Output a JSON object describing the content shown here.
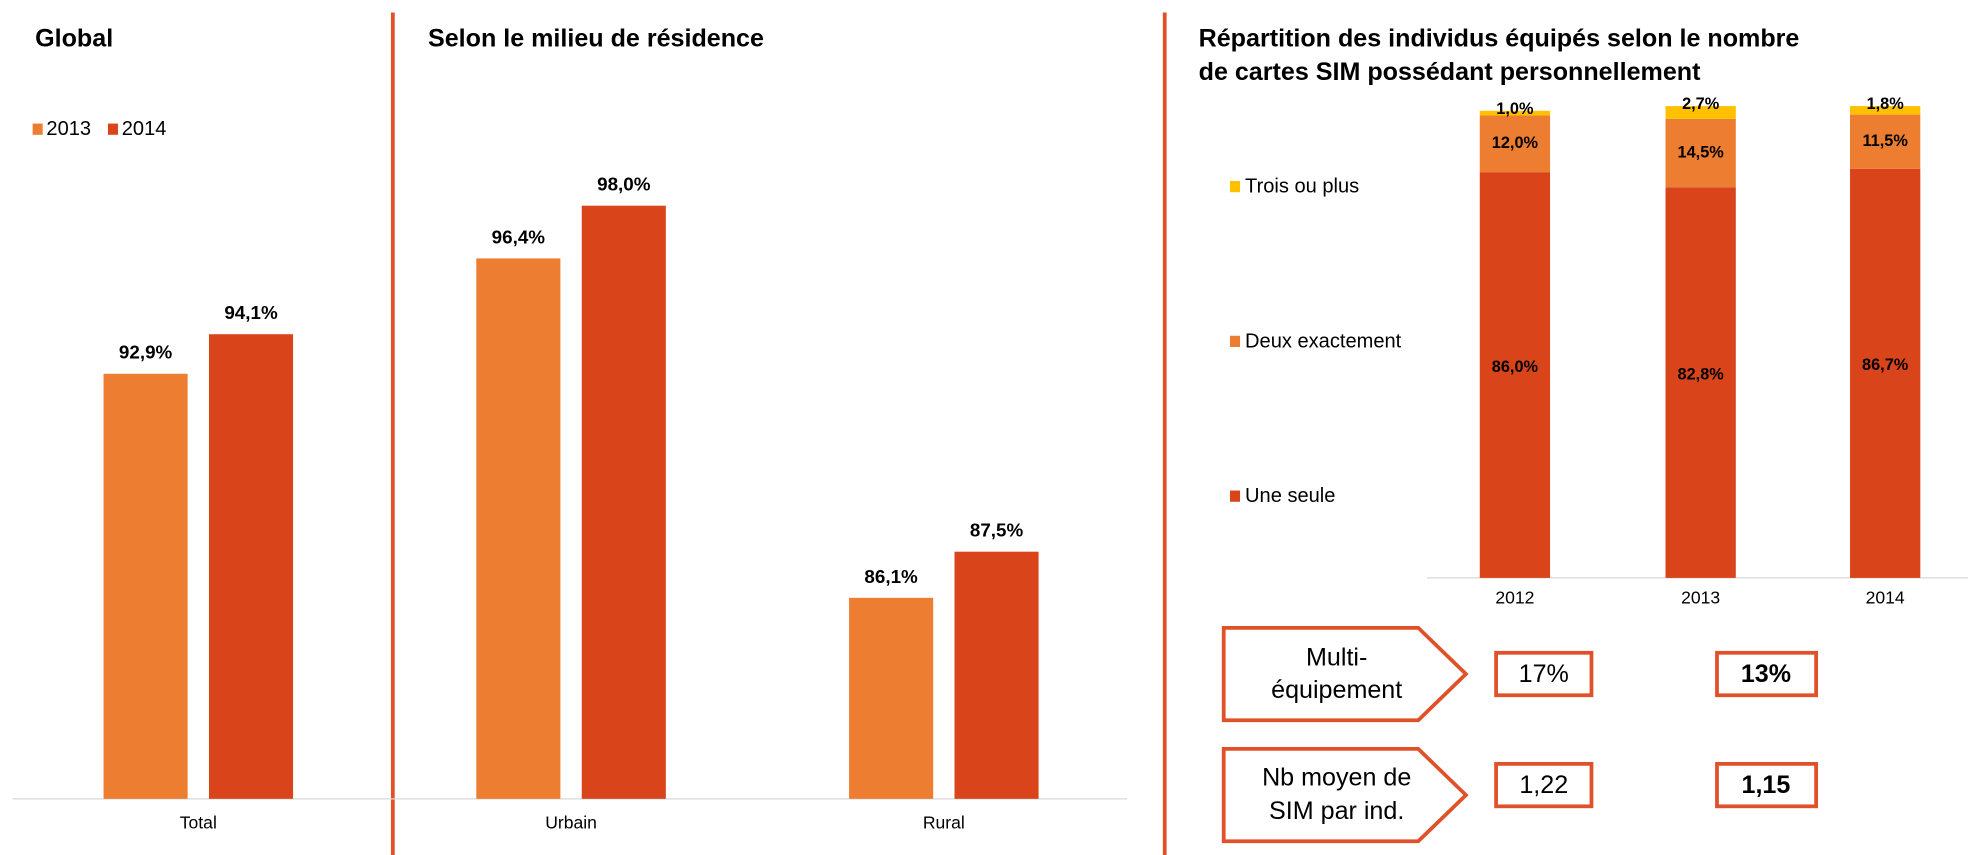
{
  "chart_data": [
    {
      "type": "bar",
      "title": "Global",
      "categories": [
        "Total"
      ],
      "series": [
        {
          "name": "2013",
          "color": "#ed7d31",
          "values": [
            92.9
          ],
          "value_labels": [
            "92,9%"
          ]
        },
        {
          "name": "2014",
          "color": "#d9441a",
          "values": [
            94.1
          ],
          "value_labels": [
            "94,1%"
          ]
        }
      ],
      "ylim": [
        80,
        100
      ],
      "legend": "top-left"
    },
    {
      "type": "bar",
      "title": "Selon le milieu de résidence",
      "categories": [
        "Urbain",
        "Rural"
      ],
      "series": [
        {
          "name": "2013",
          "color": "#ed7d31",
          "values": [
            96.4,
            86.1
          ],
          "value_labels": [
            "96,4%",
            "86,1%"
          ]
        },
        {
          "name": "2014",
          "color": "#d9441a",
          "values": [
            98.0,
            87.5
          ],
          "value_labels": [
            "98,0%",
            "87,5%"
          ]
        }
      ],
      "ylim": [
        80,
        100
      ]
    },
    {
      "type": "stacked_bar",
      "title": [
        "Répartition des individus équipés selon le nombre",
        "de cartes SIM possédant personnellement"
      ],
      "categories": [
        "2012",
        "2013",
        "2014"
      ],
      "series": [
        {
          "name": "Une seule",
          "color": "#d9441a",
          "values": [
            86.0,
            82.8,
            86.7
          ],
          "value_labels": [
            "86,0%",
            "82,8%",
            "86,7%"
          ]
        },
        {
          "name": "Deux exactement",
          "color": "#ed7d31",
          "values": [
            12.0,
            14.5,
            11.5
          ],
          "value_labels": [
            "12,0%",
            "14,5%",
            "11,5%"
          ]
        },
        {
          "name": "Trois ou plus",
          "color": "#ffc000",
          "values": [
            1.0,
            2.7,
            1.8
          ],
          "value_labels": [
            "1,0%",
            "2,7%",
            "1,8%"
          ]
        }
      ],
      "ylim": [
        0,
        100
      ],
      "legend": "left"
    }
  ],
  "summary": {
    "rows": [
      {
        "label": [
          "Multi-",
          "équipement"
        ],
        "values": [
          "17%",
          "13%"
        ]
      },
      {
        "label": [
          "Nb moyen de",
          "SIM par ind."
        ],
        "values": [
          "1,22",
          "1,15"
        ]
      }
    ]
  }
}
